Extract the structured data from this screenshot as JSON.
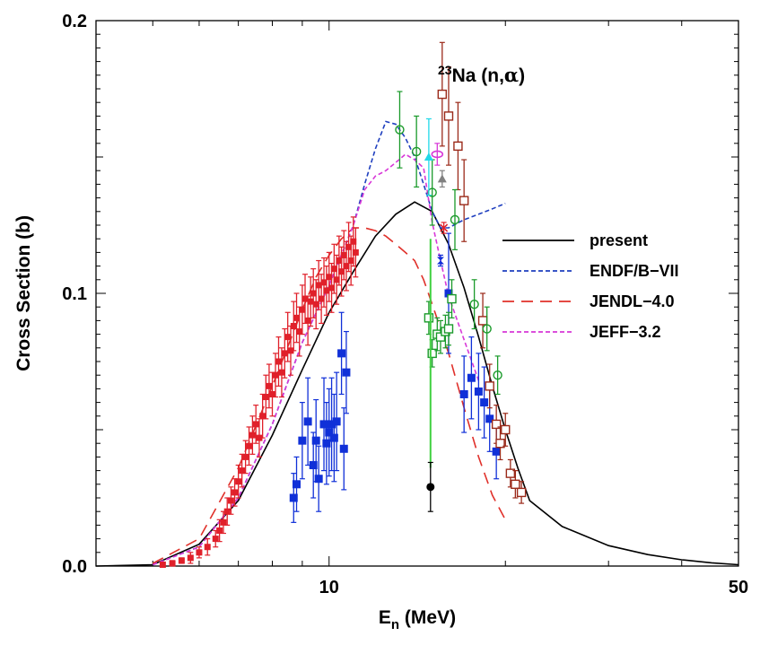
{
  "chart_data": {
    "type": "scatter",
    "title": "Na (n,α)",
    "title_isotope": "23",
    "title_reaction": "Na (n,",
    "title_greek": "α",
    "title_close": ")",
    "xlabel_main": "E",
    "xlabel_sub": "n",
    "xlabel_unit": " (MeV)",
    "ylabel": "Cross Section (b)",
    "xscale": "log",
    "xlim": [
      4,
      50
    ],
    "ylim": [
      0,
      0.2
    ],
    "x_ticks": [
      {
        "value": 10,
        "label": "10"
      },
      {
        "value": 50,
        "label": "50"
      }
    ],
    "y_ticks": [
      {
        "value": 0,
        "label": "0.0"
      },
      {
        "value": 0.1,
        "label": "0.1"
      },
      {
        "value": 0.2,
        "label": "0.2"
      }
    ],
    "legend_position": "right",
    "curves": [
      {
        "name": "present",
        "color": "#000000",
        "dash": "none",
        "x": [
          4,
          5,
          6,
          7,
          8,
          9,
          10,
          11,
          12,
          13,
          14,
          15,
          16,
          17,
          18,
          19,
          20,
          21,
          22,
          25,
          30,
          35,
          40,
          45,
          50
        ],
        "y": [
          0,
          0.0005,
          0.008,
          0.024,
          0.048,
          0.072,
          0.093,
          0.108,
          0.121,
          0.129,
          0.1335,
          0.13,
          0.118,
          0.102,
          0.084,
          0.066,
          0.05,
          0.036,
          0.024,
          0.0145,
          0.0075,
          0.0042,
          0.0023,
          0.0012,
          0.0005
        ]
      },
      {
        "name": "ENDF/B-VII",
        "color": "#1f3fbf",
        "dash": "5,3",
        "x": [
          5,
          6,
          7,
          8,
          9,
          10,
          10.5,
          11,
          11.5,
          12,
          12.5,
          13,
          13.5,
          14,
          14.5,
          15,
          15.5,
          16,
          17,
          18,
          19,
          20
        ],
        "y": [
          0.0005,
          0.007,
          0.025,
          0.052,
          0.082,
          0.103,
          0.114,
          0.125,
          0.14,
          0.153,
          0.163,
          0.162,
          0.157,
          0.15,
          0.14,
          0.13,
          0.124,
          0.124,
          0.127,
          0.129,
          0.131,
          0.133
        ]
      },
      {
        "name": "JENDL-4.0",
        "color": "#e0302a",
        "dash": "13,8",
        "x": [
          5,
          6,
          7,
          8,
          9,
          9.5,
          10,
          10.5,
          11,
          11.5,
          12,
          12.5,
          13,
          13.5,
          14,
          14.5,
          15,
          15.5,
          16,
          17,
          18,
          19,
          20
        ],
        "y": [
          0.001,
          0.01,
          0.036,
          0.066,
          0.094,
          0.106,
          0.114,
          0.12,
          0.124,
          0.124,
          0.123,
          0.121,
          0.118,
          0.115,
          0.112,
          0.105,
          0.096,
          0.087,
          0.078,
          0.058,
          0.04,
          0.026,
          0.017
        ]
      },
      {
        "name": "JEFF-3.2",
        "color": "#d838d8",
        "dash": "5,3",
        "x": [
          5,
          6,
          7,
          8,
          9,
          10,
          11,
          11.5,
          12,
          12.5,
          13,
          13.5,
          14,
          14.5,
          15,
          15.5,
          16,
          17,
          18
        ],
        "y": [
          0.0005,
          0.007,
          0.025,
          0.052,
          0.082,
          0.103,
          0.125,
          0.138,
          0.143,
          0.145,
          0.148,
          0.151,
          0.149,
          0.146,
          0.126,
          0.112,
          0.099,
          0.083,
          0.068
        ]
      }
    ],
    "measurements": [
      {
        "name": "red-points",
        "color": "#e0202a",
        "marker": "filled-square-small",
        "x": [
          5.2,
          5.4,
          5.6,
          5.8,
          6.0,
          6.2,
          6.4,
          6.5,
          6.6,
          6.7,
          6.8,
          6.9,
          7.0,
          7.1,
          7.2,
          7.3,
          7.4,
          7.5,
          7.6,
          7.7,
          7.8,
          7.9,
          8.0,
          8.1,
          8.2,
          8.3,
          8.4,
          8.5,
          8.6,
          8.7,
          8.8,
          8.9,
          9.0,
          9.1,
          9.2,
          9.3,
          9.4,
          9.5,
          9.6,
          9.7,
          9.8,
          9.9,
          10.0,
          10.1,
          10.2,
          10.3,
          10.4,
          10.5,
          10.6,
          10.7,
          10.8,
          10.9,
          11.0,
          11.1
        ],
        "y": [
          0.0005,
          0.001,
          0.002,
          0.003,
          0.005,
          0.007,
          0.01,
          0.013,
          0.016,
          0.02,
          0.024,
          0.027,
          0.031,
          0.035,
          0.04,
          0.044,
          0.048,
          0.052,
          0.047,
          0.055,
          0.062,
          0.066,
          0.063,
          0.07,
          0.075,
          0.071,
          0.078,
          0.084,
          0.079,
          0.088,
          0.091,
          0.086,
          0.094,
          0.098,
          0.09,
          0.097,
          0.1,
          0.096,
          0.103,
          0.098,
          0.104,
          0.101,
          0.106,
          0.102,
          0.109,
          0.105,
          0.112,
          0.108,
          0.114,
          0.11,
          0.117,
          0.112,
          0.119,
          0.115
        ],
        "err": [
          0.0005,
          0.001,
          0.001,
          0.002,
          0.002,
          0.003,
          0.003,
          0.004,
          0.004,
          0.005,
          0.005,
          0.005,
          0.006,
          0.006,
          0.006,
          0.007,
          0.007,
          0.007,
          0.007,
          0.008,
          0.008,
          0.008,
          0.008,
          0.008,
          0.009,
          0.009,
          0.009,
          0.009,
          0.009,
          0.009,
          0.009,
          0.009,
          0.009,
          0.009,
          0.009,
          0.009,
          0.009,
          0.009,
          0.009,
          0.009,
          0.009,
          0.009,
          0.009,
          0.009,
          0.009,
          0.009,
          0.009,
          0.009,
          0.009,
          0.009,
          0.009,
          0.009,
          0.009,
          0.009
        ]
      },
      {
        "name": "blue-squares",
        "color": "#1030d8",
        "marker": "filled-square",
        "x": [
          8.7,
          8.8,
          9.0,
          9.2,
          9.4,
          9.5,
          9.6,
          9.8,
          9.9,
          10.0,
          10.1,
          10.2,
          10.3,
          10.5,
          10.6,
          10.7,
          16.0,
          17.0,
          17.5,
          18.0,
          18.4,
          18.8,
          19.3
        ],
        "y": [
          0.025,
          0.03,
          0.046,
          0.053,
          0.037,
          0.046,
          0.032,
          0.052,
          0.045,
          0.049,
          0.052,
          0.047,
          0.053,
          0.078,
          0.043,
          0.071,
          0.1,
          0.063,
          0.069,
          0.064,
          0.06,
          0.054,
          0.042
        ],
        "err": [
          0.009,
          0.01,
          0.014,
          0.016,
          0.012,
          0.015,
          0.012,
          0.017,
          0.015,
          0.016,
          0.017,
          0.016,
          0.018,
          0.015,
          0.015,
          0.015,
          0.022,
          0.014,
          0.015,
          0.014,
          0.013,
          0.012,
          0.01
        ]
      },
      {
        "name": "brown-open-squares",
        "color": "#9b2a1a",
        "marker": "open-square",
        "x": [
          15.6,
          16.0,
          16.6,
          17.0,
          18.3,
          18.8,
          19.3,
          19.6,
          20.0,
          20.4,
          20.8,
          21.3
        ],
        "y": [
          0.173,
          0.165,
          0.154,
          0.134,
          0.09,
          0.066,
          0.052,
          0.045,
          0.05,
          0.034,
          0.03,
          0.027
        ],
        "err": [
          0.019,
          0.018,
          0.016,
          0.015,
          0.01,
          0.008,
          0.007,
          0.006,
          0.006,
          0.005,
          0.005,
          0.004
        ]
      },
      {
        "name": "green-open-squares",
        "color": "#1a9a2a",
        "marker": "open-square",
        "x": [
          14.8,
          15.0,
          15.3,
          15.5,
          15.8,
          16.0,
          16.2
        ],
        "y": [
          0.091,
          0.078,
          0.085,
          0.084,
          0.086,
          0.087,
          0.098
        ],
        "err": [
          0.006,
          0.005,
          0.006,
          0.006,
          0.006,
          0.006,
          0.007
        ]
      },
      {
        "name": "green-circles",
        "color": "#1a9a2a",
        "marker": "open-circle",
        "x": [
          13.2,
          14.1,
          15.0,
          16.4,
          17.7,
          18.6,
          19.4
        ],
        "y": [
          0.16,
          0.152,
          0.137,
          0.127,
          0.096,
          0.087,
          0.07
        ],
        "err": [
          0.014,
          0.013,
          0.012,
          0.011,
          0.009,
          0.008,
          0.007
        ]
      },
      {
        "name": "green-line",
        "color": "#40d040",
        "marker": "none",
        "x": [
          14.9
        ],
        "y": [
          0.078
        ],
        "err": [
          0.042
        ]
      },
      {
        "name": "cyan-point",
        "color": "#20d8e8",
        "marker": "filled-triangle",
        "x": [
          14.8
        ],
        "y": [
          0.15
        ],
        "err": [
          0.014
        ]
      },
      {
        "name": "magenta-ellipse",
        "color": "#d838d8",
        "marker": "open-ellipse",
        "x": [
          15.3
        ],
        "y": [
          0.151
        ],
        "err": [
          0.004
        ]
      },
      {
        "name": "gray-triangle",
        "color": "#808080",
        "marker": "filled-triangle",
        "x": [
          15.6
        ],
        "y": [
          0.142
        ],
        "err": [
          0.003
        ]
      },
      {
        "name": "red-x",
        "color": "#e0202a",
        "marker": "x",
        "x": [
          15.7
        ],
        "y": [
          0.124
        ],
        "err": [
          0.002
        ]
      },
      {
        "name": "blue-bowtie",
        "color": "#1030d8",
        "marker": "bowtie",
        "x": [
          15.5
        ],
        "y": [
          0.112
        ],
        "err": [
          0.002
        ]
      },
      {
        "name": "black-point",
        "color": "#000000",
        "marker": "filled-circle",
        "x": [
          14.9
        ],
        "y": [
          0.029
        ],
        "err": [
          0.009
        ]
      }
    ],
    "legend": [
      {
        "label": "present",
        "color": "#000000",
        "dash": "none"
      },
      {
        "label": "ENDF/B−VII",
        "color": "#1f3fbf",
        "dash": "5,3"
      },
      {
        "label": "JENDL−4.0",
        "color": "#e0302a",
        "dash": "13,8"
      },
      {
        "label": "JEFF−3.2",
        "color": "#d838d8",
        "dash": "5,3"
      }
    ]
  }
}
